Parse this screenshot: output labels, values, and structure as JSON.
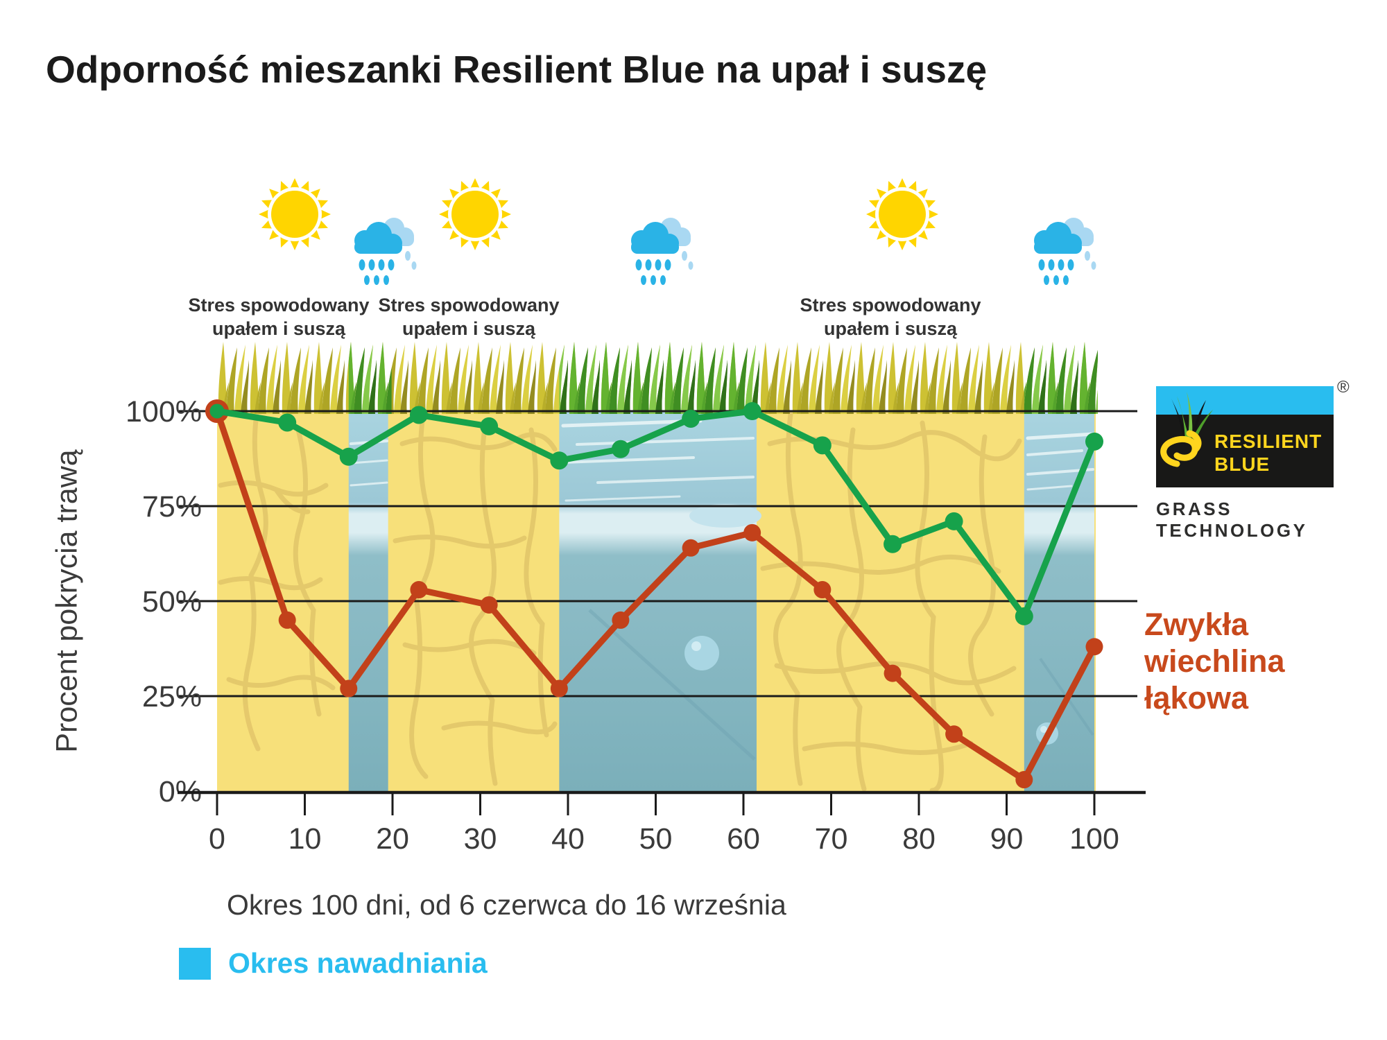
{
  "title": "Odporność mieszanki Resilient Blue na upał i suszę",
  "stress_label": {
    "line1": "Stres spowodowany",
    "line2": "upałem i suszą"
  },
  "axis": {
    "ylabel": "Procent pokrycia trawą",
    "xlabel_caption": "Okres 100 dni, od 6 czerwca do 16 września"
  },
  "legend": {
    "label": "Okres nawadniania",
    "color": "#29BDEF"
  },
  "series_label": {
    "line1": "Zwykła",
    "line2": "wiechlina łąkowa",
    "color": "#C8491C"
  },
  "logo": {
    "line1": "RESILIENT",
    "line2": "BLUE",
    "subtitle": "GRASS TECHNOLOGY",
    "registered": "®"
  },
  "icons": [
    "sun-icon",
    "rain-cloud-icon",
    "sun-icon",
    "rain-cloud-icon",
    "sun-icon",
    "rain-cloud-icon"
  ],
  "chart_data": {
    "type": "line",
    "x": [
      0,
      8,
      15,
      23,
      31,
      39,
      46,
      54,
      61,
      69,
      77,
      84,
      92,
      100
    ],
    "series": [
      {
        "name": "Zwykła wiechlina łąkowa",
        "color": "#C2411A",
        "values": [
          100,
          45,
          27,
          53,
          49,
          27,
          45,
          64,
          68,
          53,
          31,
          15,
          3,
          38
        ]
      },
      {
        "name": "Resilient Blue",
        "color": "#17A24B",
        "values": [
          100,
          97,
          88,
          99,
          96,
          87,
          90,
          98,
          100,
          91,
          65,
          71,
          46,
          92
        ]
      }
    ],
    "xticks": [
      "0",
      "10",
      "20",
      "30",
      "40",
      "50",
      "60",
      "70",
      "80",
      "90",
      "100"
    ],
    "yticks": [
      "100%",
      "75%",
      "50%",
      "25%",
      "0%"
    ],
    "xlim": [
      0,
      100
    ],
    "ylim": [
      0,
      100
    ],
    "xlabel": "Okres 100 dni, od 6 czerwca do 16 września",
    "ylabel": "Procent pokrycia trawą",
    "grid": true,
    "watering_periods": [
      [
        15,
        19.5
      ],
      [
        39,
        61.5
      ],
      [
        92,
        100
      ]
    ],
    "watering_band_color": "#8FBFCE",
    "soil_color": "#F7E07A"
  }
}
